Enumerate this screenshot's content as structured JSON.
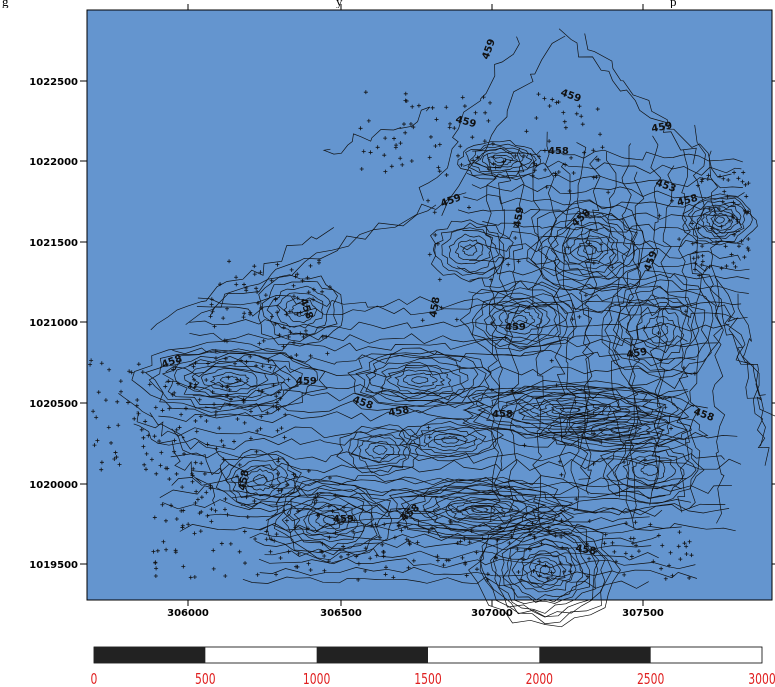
{
  "header_fragment": {
    "left": "g",
    "mid": "y",
    "right": "p"
  },
  "map": {
    "background_color": "#6495cf",
    "contour_color": "#111111",
    "contour_labels": [
      "459",
      "459",
      "459",
      "458",
      "459",
      "453",
      "458",
      "459",
      "459",
      "458",
      "459",
      "458",
      "458",
      "459",
      "459",
      "458",
      "459",
      "458",
      "458",
      "458",
      "458",
      "458",
      "459",
      "458",
      "458"
    ],
    "y_axis_ticks": [
      "1022500",
      "1022000",
      "1021500",
      "1021000",
      "1020500",
      "1020000",
      "1019500"
    ],
    "x_axis_ticks": [
      "306000",
      "306500",
      "307000",
      "307500"
    ]
  },
  "scale_bar": {
    "labels": [
      "0",
      "500",
      "1000",
      "1500",
      "2000",
      "2500",
      "3000"
    ],
    "label_color": "#e02020",
    "fill_color": "#222222"
  }
}
